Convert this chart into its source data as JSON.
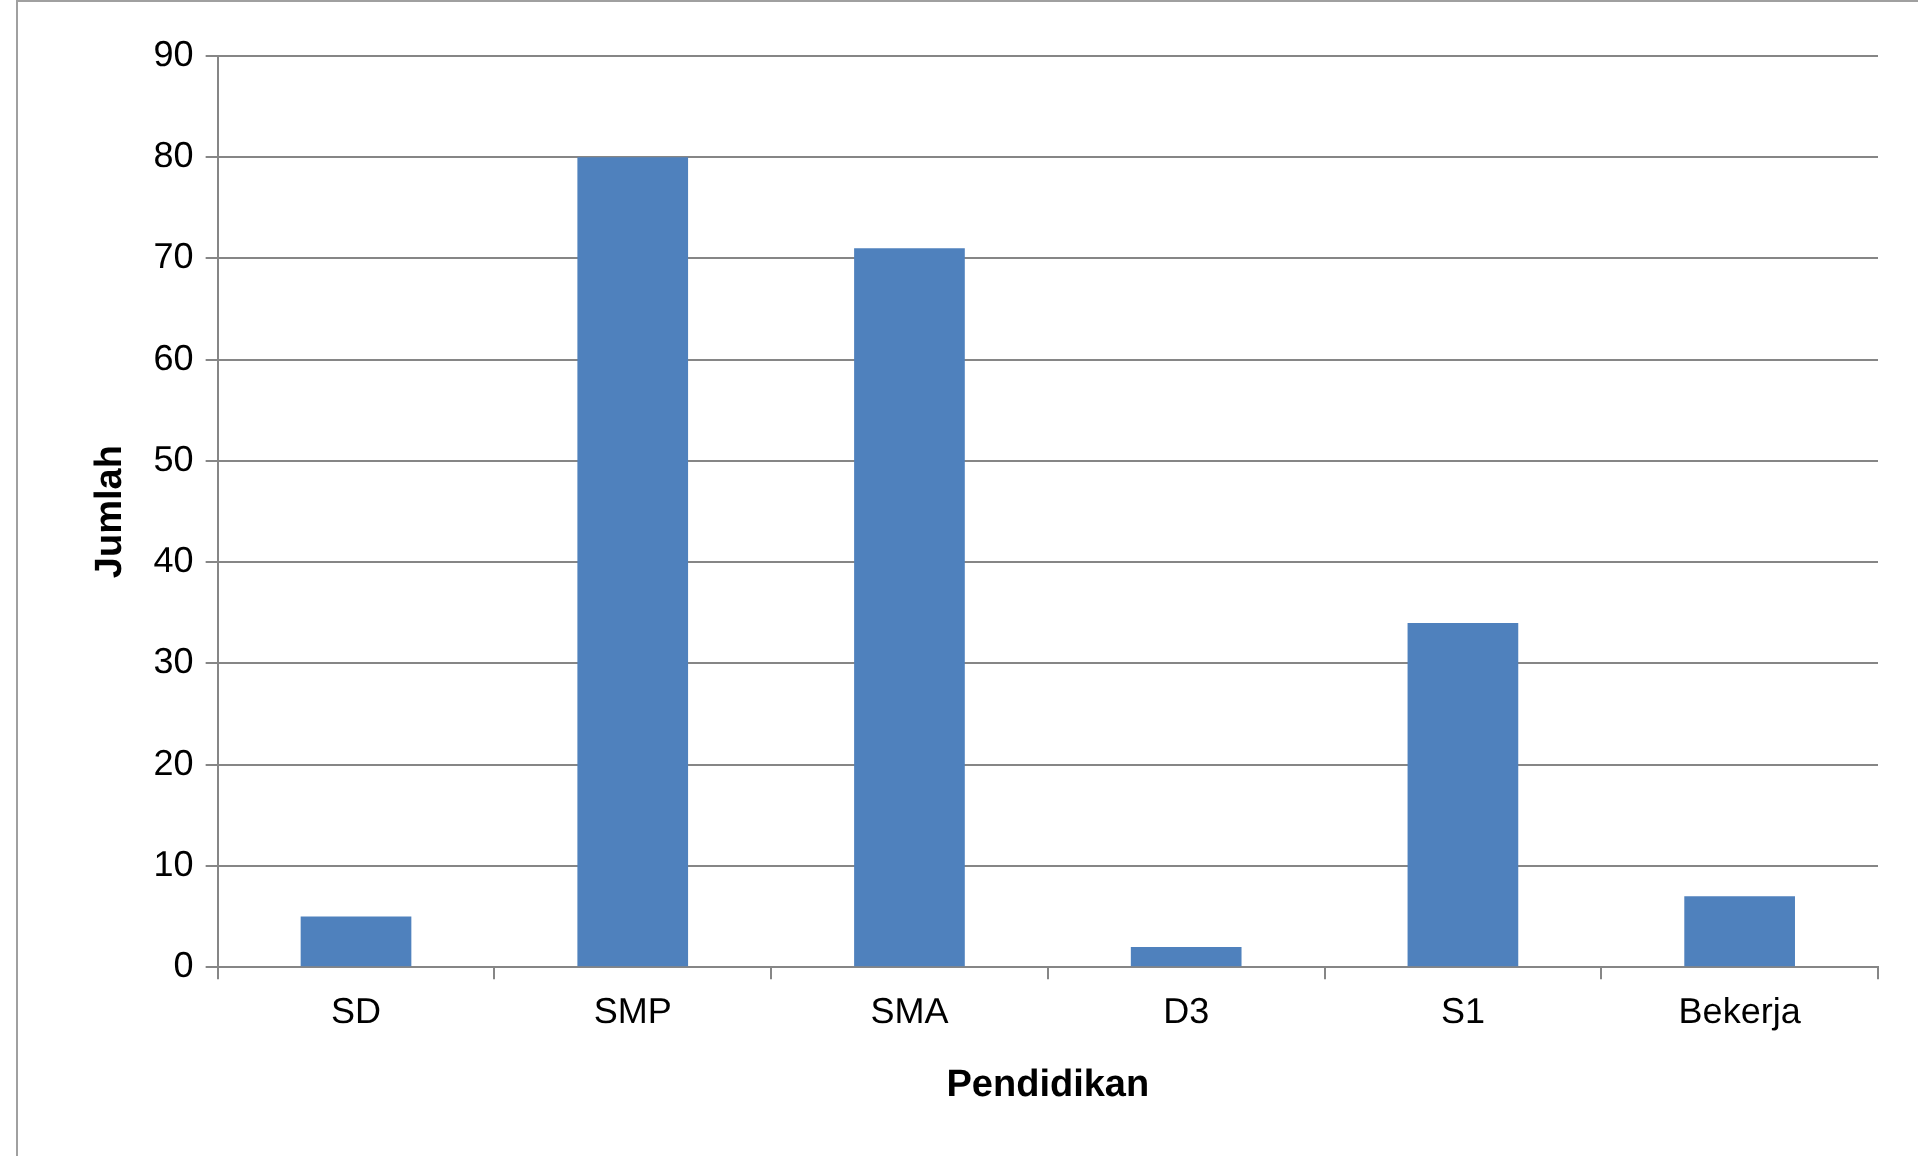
{
  "chart_data": {
    "type": "bar",
    "xlabel": "Pendidikan",
    "ylabel": "Jumlah",
    "categories": [
      "SD",
      "SMP",
      "SMA",
      "D3",
      "S1",
      "Bekerja"
    ],
    "values": [
      5,
      80,
      71,
      2,
      34,
      7
    ],
    "color": "#4f81bd",
    "ylim": [
      0,
      90
    ],
    "yticks": [
      0,
      10,
      20,
      30,
      40,
      50,
      60,
      70,
      80,
      90
    ],
    "grid": "y",
    "legend": false
  }
}
